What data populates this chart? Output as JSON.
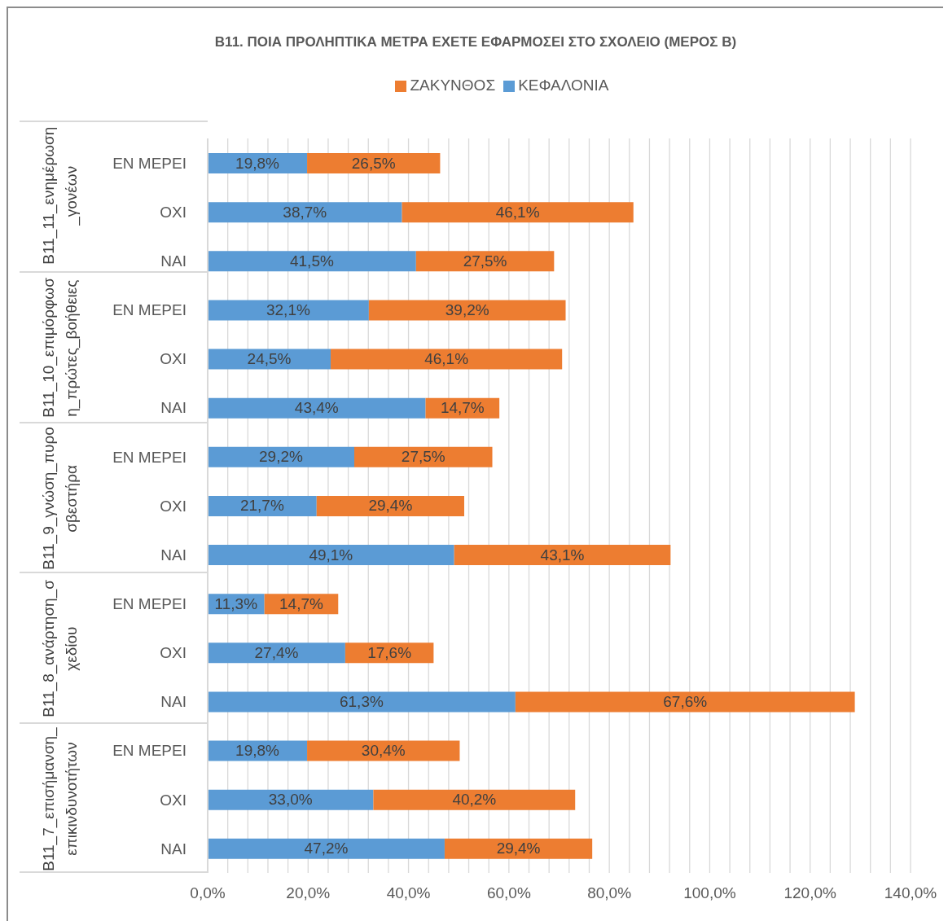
{
  "chart_data": {
    "type": "bar",
    "orientation": "horizontal",
    "stacked": true,
    "title": "Β11. ΠΟΙΑ ΠΡΟΛΗΠΤΙΚΑ ΜΕΤΡΑ ΕΧΕΤΕ ΕΦΑΡΜΟΣΕΙ ΣΤΟ ΣΧΟΛΕΙΟ (ΜΕΡΟΣ Β)",
    "categories": [
      "ΕΝ ΜΕΡΕΙ",
      "ΟΧΙ",
      "ΝΑΙ",
      "ΕΝ ΜΕΡΕΙ",
      "ΟΧΙ",
      "ΝΑΙ",
      "ΕΝ ΜΕΡΕΙ",
      "ΟΧΙ",
      "ΝΑΙ",
      "ΕΝ ΜΕΡΕΙ",
      "ΟΧΙ",
      "ΝΑΙ",
      "ΕΝ ΜΕΡΕΙ",
      "ΟΧΙ",
      "ΝΑΙ"
    ],
    "annotations": [
      "B11_11_ενημέρωση_γονέων",
      "B11_10_επιμόρφωση_πρώτες_βοήθειες",
      "B11_9_γνώση_πυροσβεστήρα",
      "B11_8_ανάρτηση_σχεδίου",
      "B11_7_επισήμανση_επικινδυνοτήτων"
    ],
    "series": [
      {
        "name": "ΚΕΦΑΛΟΝΙΑ",
        "color": "#5b9bd5",
        "values": [
          19.8,
          38.7,
          41.5,
          32.1,
          24.5,
          43.4,
          29.2,
          21.7,
          49.1,
          11.3,
          27.4,
          61.3,
          19.8,
          33.0,
          47.2
        ],
        "value_labels": [
          "19,8%",
          "38,7%",
          "41,5%",
          "32,1%",
          "24,5%",
          "43,4%",
          "29,2%",
          "21,7%",
          "49,1%",
          "11,3%",
          "27,4%",
          "61,3%",
          "19,8%",
          "33,0%",
          "47,2%"
        ]
      },
      {
        "name": "ΖΑΚΥΝΘΟΣ",
        "color": "#ed7d31",
        "values": [
          26.5,
          46.1,
          27.5,
          39.2,
          46.1,
          14.7,
          27.5,
          29.4,
          43.1,
          14.7,
          17.6,
          67.6,
          30.4,
          40.2,
          29.4
        ],
        "value_labels": [
          "26,5%",
          "46,1%",
          "27,5%",
          "39,2%",
          "46,1%",
          "14,7%",
          "27,5%",
          "29,4%",
          "43,1%",
          "14,7%",
          "17,6%",
          "67,6%",
          "30,4%",
          "40,2%",
          "29,4%"
        ]
      }
    ],
    "xlim": [
      0,
      140
    ],
    "xticks": [
      {
        "value": 0,
        "label": "0,0%"
      },
      {
        "value": 4,
        "label": null
      },
      {
        "value": 8,
        "label": null
      },
      {
        "value": 12,
        "label": null
      },
      {
        "value": 16,
        "label": null
      },
      {
        "value": 20,
        "label": "20,0%"
      },
      {
        "value": 24,
        "label": null
      },
      {
        "value": 28,
        "label": null
      },
      {
        "value": 32,
        "label": null
      },
      {
        "value": 36,
        "label": null
      },
      {
        "value": 40,
        "label": "40,0%"
      },
      {
        "value": 44,
        "label": null
      },
      {
        "value": 48,
        "label": null
      },
      {
        "value": 52,
        "label": null
      },
      {
        "value": 56,
        "label": null
      },
      {
        "value": 60,
        "label": "60,0%"
      },
      {
        "value": 64,
        "label": null
      },
      {
        "value": 68,
        "label": null
      },
      {
        "value": 72,
        "label": null
      },
      {
        "value": 76,
        "label": null
      },
      {
        "value": 80,
        "label": "80,0%"
      },
      {
        "value": 84,
        "label": null
      },
      {
        "value": 88,
        "label": null
      },
      {
        "value": 92,
        "label": null
      },
      {
        "value": 96,
        "label": null
      },
      {
        "value": 100,
        "label": "100,0%"
      },
      {
        "value": 104,
        "label": null
      },
      {
        "value": 108,
        "label": null
      },
      {
        "value": 112,
        "label": null
      },
      {
        "value": 116,
        "label": null
      },
      {
        "value": 120,
        "label": "120,0%"
      },
      {
        "value": 124,
        "label": null
      },
      {
        "value": 128,
        "label": null
      },
      {
        "value": 132,
        "label": null
      },
      {
        "value": 136,
        "label": null
      },
      {
        "value": 140,
        "label": "140,0%"
      }
    ],
    "grid": "x",
    "legend": "top"
  }
}
